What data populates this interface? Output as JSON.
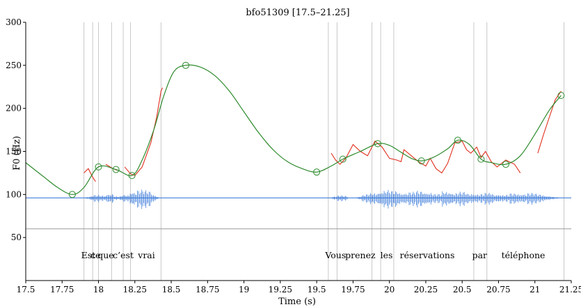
{
  "chart_data": {
    "type": "line",
    "title": "bfo51309 [17.5–21.25]",
    "xlabel": "Time (s)",
    "ylabel": "F0 (Hz)",
    "xlim": [
      17.5,
      21.25
    ],
    "ylim": [
      0,
      300
    ],
    "x_ticks": [
      17.5,
      17.75,
      18,
      18.25,
      18.5,
      18.75,
      19,
      19.25,
      19.5,
      19.75,
      20,
      20.25,
      20.5,
      20.75,
      21,
      21.25
    ],
    "x_tick_labels": [
      "17.5",
      "17.75",
      "18",
      "18.25",
      "18.5",
      "18.75",
      "19",
      "19.25",
      "19.5",
      "19.75",
      "20",
      "20.25",
      "20.5",
      "20.75",
      "21",
      "21.25"
    ],
    "y_ticks": [
      50,
      100,
      150,
      200,
      250,
      300
    ],
    "y_tick_labels": [
      "50",
      "100",
      "150",
      "200",
      "250",
      "300"
    ],
    "grid": false,
    "colors": {
      "stylized_curve": "#2e8b2e",
      "raw_f0": "#e0301e",
      "waveform": "#2a6fd6",
      "boundary_lines": "#c8c8c8",
      "axis": "#000000"
    },
    "series": [
      {
        "kind": "stylized-contour",
        "points": [
          [
            17.5,
            137
          ],
          [
            17.62,
            121
          ],
          [
            17.72,
            108
          ],
          [
            17.82,
            100
          ],
          [
            17.9,
            108
          ],
          [
            18.0,
            132
          ],
          [
            18.12,
            129
          ],
          [
            18.23,
            122
          ],
          [
            18.3,
            140
          ],
          [
            18.38,
            175
          ],
          [
            18.45,
            215
          ],
          [
            18.52,
            243
          ],
          [
            18.6,
            250
          ],
          [
            18.7,
            248
          ],
          [
            18.8,
            238
          ],
          [
            18.9,
            220
          ],
          [
            19.0,
            196
          ],
          [
            19.1,
            172
          ],
          [
            19.2,
            152
          ],
          [
            19.3,
            138
          ],
          [
            19.4,
            130
          ],
          [
            19.5,
            126
          ],
          [
            19.6,
            133
          ],
          [
            19.68,
            141
          ],
          [
            19.8,
            150
          ],
          [
            19.92,
            159
          ],
          [
            20.0,
            157
          ],
          [
            20.08,
            149
          ],
          [
            20.15,
            142
          ],
          [
            20.22,
            139
          ],
          [
            20.3,
            143
          ],
          [
            20.4,
            153
          ],
          [
            20.47,
            163
          ],
          [
            20.55,
            158
          ],
          [
            20.63,
            141
          ],
          [
            20.7,
            137
          ],
          [
            20.8,
            135
          ],
          [
            20.9,
            145
          ],
          [
            21.0,
            170
          ],
          [
            21.1,
            198
          ],
          [
            21.18,
            215
          ]
        ]
      },
      {
        "kind": "stylization-targets",
        "points": [
          [
            17.82,
            100
          ],
          [
            18.0,
            132
          ],
          [
            18.12,
            129
          ],
          [
            18.23,
            122
          ],
          [
            18.6,
            250
          ],
          [
            19.5,
            126
          ],
          [
            19.68,
            141
          ],
          [
            19.92,
            159
          ],
          [
            20.22,
            139
          ],
          [
            20.47,
            163
          ],
          [
            20.63,
            141
          ],
          [
            20.8,
            135
          ],
          [
            21.18,
            215
          ]
        ]
      },
      {
        "kind": "raw-f0",
        "segments": [
          [
            [
              17.9,
              125
            ],
            [
              17.93,
              130
            ],
            [
              17.96,
              120
            ],
            [
              17.98,
              115
            ]
          ],
          [
            [
              18.05,
              135
            ],
            [
              18.1,
              130
            ],
            [
              18.13,
              128
            ]
          ],
          [
            [
              18.18,
              132
            ],
            [
              18.22,
              124
            ],
            [
              18.25,
              122
            ],
            [
              18.3,
              132
            ],
            [
              18.36,
              160
            ],
            [
              18.4,
              190
            ],
            [
              18.43,
              220
            ],
            [
              18.44,
              224
            ]
          ],
          [
            [
              19.6,
              148
            ],
            [
              19.63,
              140
            ],
            [
              19.66,
              135
            ],
            [
              19.7,
              142
            ],
            [
              19.75,
              158
            ],
            [
              19.8,
              150
            ],
            [
              19.85,
              145
            ],
            [
              19.9,
              162
            ],
            [
              19.95,
              155
            ],
            [
              20.0,
              142
            ],
            [
              20.05,
              140
            ],
            [
              20.08,
              138
            ],
            [
              20.1,
              152
            ],
            [
              20.15,
              145
            ],
            [
              20.2,
              138
            ],
            [
              20.25,
              133
            ],
            [
              20.28,
              142
            ],
            [
              20.32,
              130
            ],
            [
              20.36,
              125
            ],
            [
              20.4,
              136
            ],
            [
              20.45,
              160
            ],
            [
              20.5,
              162
            ],
            [
              20.53,
              152
            ],
            [
              20.56,
              148
            ],
            [
              20.6,
              155
            ],
            [
              20.63,
              143
            ],
            [
              20.66,
              150
            ],
            [
              20.7,
              138
            ],
            [
              20.74,
              132
            ],
            [
              20.8,
              140
            ],
            [
              20.86,
              135
            ],
            [
              20.9,
              125
            ]
          ],
          [
            [
              21.02,
              148
            ],
            [
              21.06,
              170
            ],
            [
              21.1,
              190
            ],
            [
              21.14,
              210
            ],
            [
              21.18,
              220
            ]
          ]
        ]
      }
    ],
    "waveform": {
      "baseline_hz": 96,
      "segments": [
        {
          "start": 17.9,
          "end": 18.42,
          "amplitude": [
            4,
            6,
            5,
            8,
            3,
            6,
            12,
            16,
            15,
            10
          ]
        },
        {
          "start": 19.6,
          "end": 19.72,
          "amplitude": [
            3,
            5,
            4
          ]
        },
        {
          "start": 19.77,
          "end": 21.18,
          "amplitude": [
            18,
            15,
            13,
            16,
            14,
            10,
            12,
            14,
            11,
            8,
            13,
            10,
            12,
            9,
            8,
            10,
            7,
            6,
            9,
            8,
            10,
            9,
            7,
            6
          ]
        }
      ]
    },
    "baseline_hz": 60,
    "boundaries": [
      17.9,
      17.96,
      18.0,
      18.09,
      18.17,
      18.22,
      18.43,
      19.58,
      19.64,
      19.88,
      19.94,
      20.03,
      20.58,
      20.67,
      21.2
    ],
    "words": [
      {
        "text": "Est",
        "x": 17.93
      },
      {
        "text": "ce",
        "x": 17.98
      },
      {
        "text": "que",
        "x": 18.05
      },
      {
        "text": "c’est",
        "x": 18.17
      },
      {
        "text": "vrai",
        "x": 18.33
      },
      {
        "text": "Vous",
        "x": 19.63
      },
      {
        "text": "prenez",
        "x": 19.8
      },
      {
        "text": "les",
        "x": 19.98
      },
      {
        "text": "réservations",
        "x": 20.26
      },
      {
        "text": "par",
        "x": 20.62
      },
      {
        "text": "téléphone",
        "x": 20.92
      }
    ]
  }
}
